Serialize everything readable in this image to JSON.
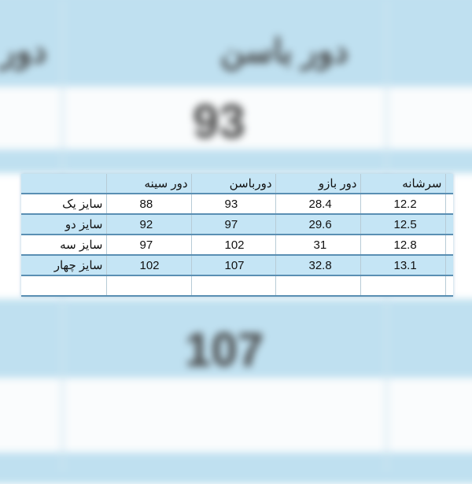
{
  "background": {
    "header_left": "دور",
    "header_center": "دور باسن",
    "value_top": "93",
    "value_bottom": "107"
  },
  "table": {
    "headers": [
      "",
      "دور سینه",
      "دورباسن",
      "دور بازو",
      "سرشانه"
    ],
    "rows": [
      {
        "label": "سایز یک",
        "values": [
          "88",
          "93",
          "28.4",
          "12.2"
        ]
      },
      {
        "label": "سایز دو",
        "values": [
          "92",
          "97",
          "29.6",
          "12.5"
        ]
      },
      {
        "label": "سایز سه",
        "values": [
          "97",
          "102",
          "31",
          "12.8"
        ]
      },
      {
        "label": "سایز چهار",
        "values": [
          "102",
          "107",
          "32.8",
          "13.1"
        ]
      }
    ]
  },
  "colors": {
    "row_blue": "#c5e5f5",
    "border": "#5a8fb3"
  }
}
